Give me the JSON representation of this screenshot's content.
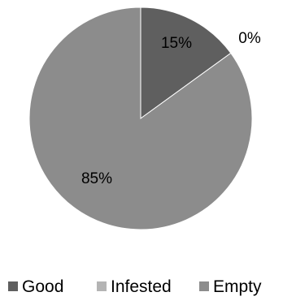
{
  "chart_data": {
    "type": "pie",
    "categories": [
      "Good",
      "Infested",
      "Empty"
    ],
    "values": [
      15,
      0,
      85
    ],
    "data_labels": [
      "15%",
      "0%",
      "85%"
    ],
    "colors": [
      "#5f5f5f",
      "#b4b4b4",
      "#8c8c8c"
    ],
    "start_angle_deg": 0,
    "direction": "clockwise",
    "legend_position": "bottom",
    "title": ""
  }
}
